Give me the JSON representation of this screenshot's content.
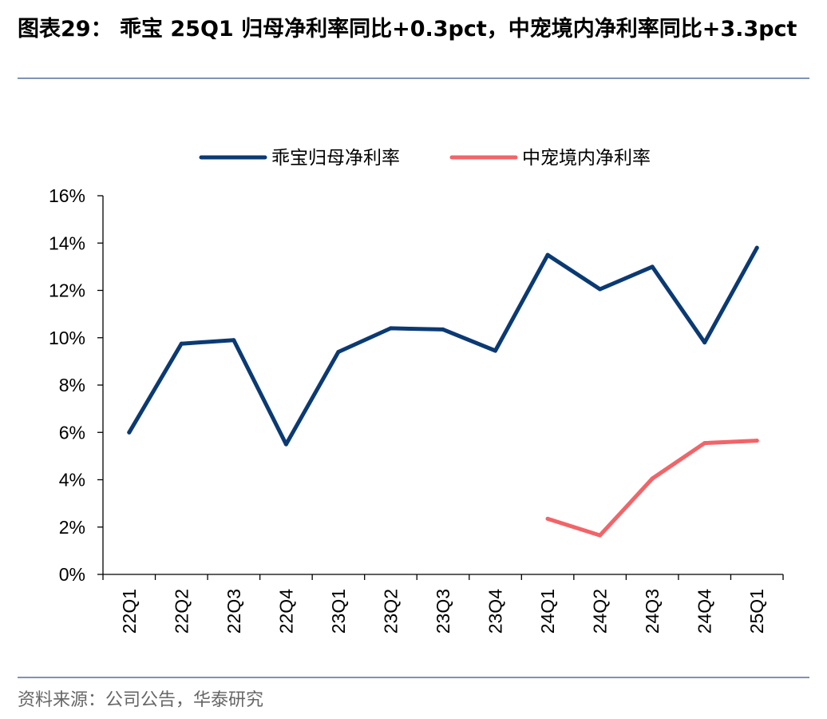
{
  "header": {
    "title": "图表29： 乖宝 25Q1 归母净利率同比+0.3pct，中宠境内净利率同比+3.3pct"
  },
  "footer": {
    "source": "资料来源：公司公告，华泰研究"
  },
  "chart_data": {
    "type": "line",
    "categories": [
      "22Q1",
      "22Q2",
      "22Q3",
      "22Q4",
      "23Q1",
      "23Q2",
      "23Q3",
      "23Q4",
      "24Q1",
      "24Q2",
      "24Q3",
      "24Q4",
      "25Q1"
    ],
    "series": [
      {
        "name": "乖宝归母净利率",
        "color": "#0b3a73",
        "values": [
          6.0,
          9.75,
          9.9,
          5.5,
          9.4,
          10.4,
          10.35,
          9.45,
          13.5,
          12.05,
          13.0,
          9.8,
          13.8
        ]
      },
      {
        "name": "中宠境内净利率",
        "color": "#f26468",
        "values": [
          null,
          null,
          null,
          null,
          null,
          null,
          null,
          null,
          2.35,
          1.65,
          4.05,
          5.55,
          5.65
        ]
      }
    ],
    "yticks": [
      "0%",
      "2%",
      "4%",
      "6%",
      "8%",
      "10%",
      "12%",
      "14%",
      "16%"
    ],
    "ylim": [
      0,
      16
    ],
    "grid": false,
    "legend_position": "top-center"
  }
}
